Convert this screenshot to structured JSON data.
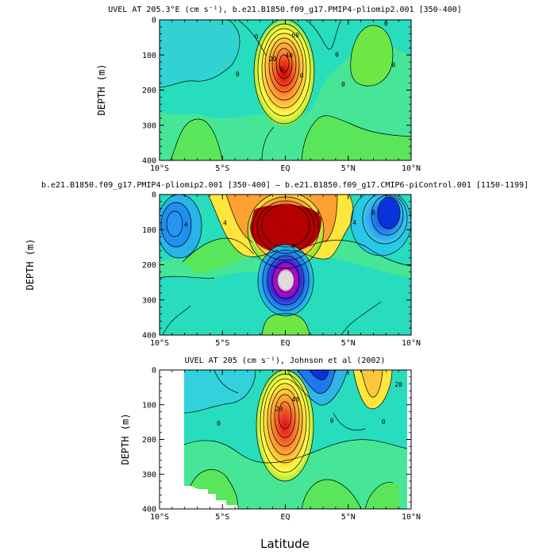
{
  "chart_data": [
    {
      "type": "heatmap",
      "title": "UVEL AT 205.3°E (cm s⁻¹), b.e21.B1850.f09_g17.PMIP4-pliomip2.001 [350-400]",
      "ylabel": "DEPTH (m)",
      "xlabel": "",
      "xlim": [
        -10,
        10
      ],
      "ylim": [
        400,
        0
      ],
      "x_ticks": [
        "10°S",
        "5°S",
        "EQ",
        "5°N",
        "10°N"
      ],
      "y_ticks": [
        "0",
        "100",
        "200",
        "300",
        "400"
      ],
      "contour_labels": [
        {
          "text": "60",
          "x": 0.8,
          "y": 100
        },
        {
          "text": "40",
          "x": 0.3,
          "y": 215
        },
        {
          "text": "20",
          "x": -1.0,
          "y": 235
        },
        {
          "text": "0",
          "x": -2.3,
          "y": 108
        },
        {
          "text": "0",
          "x": -3.8,
          "y": 320
        },
        {
          "text": "0",
          "x": -0.3,
          "y": 295
        },
        {
          "text": "0",
          "x": 1.3,
          "y": 330
        },
        {
          "text": "0",
          "x": 4.1,
          "y": 210
        },
        {
          "text": "0",
          "x": 4.6,
          "y": 380
        },
        {
          "text": "0",
          "x": 8.6,
          "y": 270
        },
        {
          "text": "0",
          "x": 8.0,
          "y": 35
        }
      ]
    },
    {
      "type": "heatmap",
      "title": "b.e21.B1850.f09_g17.PMIP4-pliomip2.001 [350-400] – b.e21.B1850.f09_g17.CMIP6-piControl.001 [1150-1199]",
      "ylabel": "DEPTH (m)",
      "xlabel": "",
      "xlim": [
        -10,
        10
      ],
      "ylim": [
        400,
        0
      ],
      "x_ticks": [
        "10°S",
        "5°S",
        "EQ",
        "5°N",
        "10°N"
      ],
      "y_ticks": [
        "0",
        "100",
        "200",
        "300",
        "400"
      ],
      "contour_labels": [
        {
          "text": "4",
          "x": -7.9,
          "y": 182
        },
        {
          "text": "4",
          "x": -4.8,
          "y": 175
        },
        {
          "text": "4",
          "x": 2.6,
          "y": 115
        },
        {
          "text": "4",
          "x": 5.5,
          "y": 172
        },
        {
          "text": "8",
          "x": 7.0,
          "y": 115
        },
        {
          "text": "4",
          "x": 0.6,
          "y": 310
        }
      ]
    },
    {
      "type": "heatmap",
      "title": "UVEL AT 205 (cm s⁻¹), Johnson et al (2002)",
      "ylabel": "DEPTH (m)",
      "xlabel": "Latitude",
      "xlim": [
        -10,
        10
      ],
      "ylim": [
        400,
        0
      ],
      "x_ticks": [
        "10°S",
        "5°S",
        "EQ",
        "5°N",
        "10°N"
      ],
      "y_ticks": [
        "0",
        "100",
        "200",
        "300",
        "400"
      ],
      "contour_labels": [
        {
          "text": "40",
          "x": 0.8,
          "y": 182
        },
        {
          "text": "20",
          "x": -0.5,
          "y": 235
        },
        {
          "text": "20",
          "x": 9.0,
          "y": 95
        },
        {
          "text": "0",
          "x": -5.3,
          "y": 320
        },
        {
          "text": "0",
          "x": 3.7,
          "y": 305
        },
        {
          "text": "0",
          "x": 7.8,
          "y": 310
        }
      ]
    }
  ]
}
